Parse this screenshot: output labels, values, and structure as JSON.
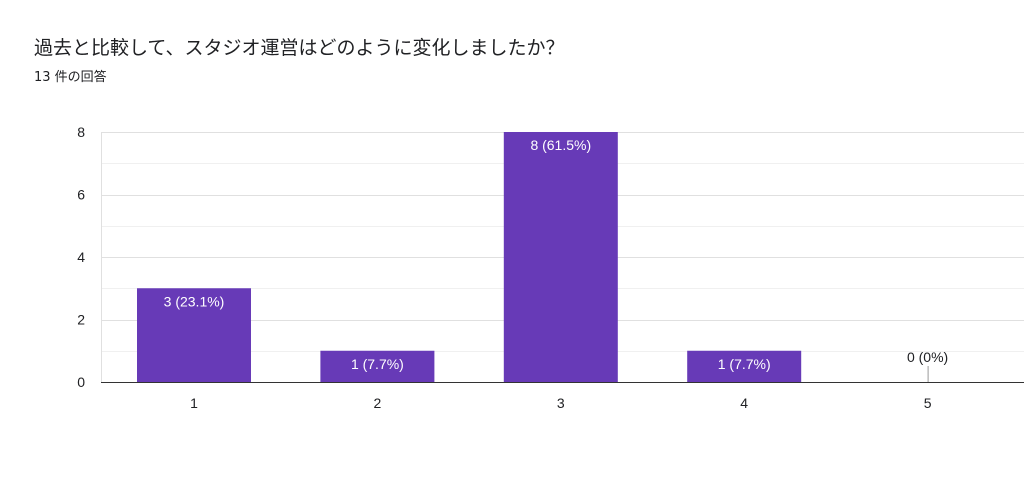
{
  "question": {
    "title": "過去と比較して、スタジオ運営はどのように変化しましたか？",
    "response_count": "13 件の回答"
  },
  "colors": {
    "bar": "#673ab7",
    "grid": "#e8e8e8",
    "axis": "#333333",
    "label_inside": "#ffffff",
    "label_outside": "#202124"
  },
  "chart_data": {
    "type": "bar",
    "title": "過去と比較して、スタジオ運営はどのように変化しましたか？",
    "xlabel": "",
    "ylabel": "",
    "categories": [
      "1",
      "2",
      "3",
      "4",
      "5"
    ],
    "values": [
      3,
      1,
      8,
      1,
      0
    ],
    "data_labels": [
      "3 (23.1%)",
      "1 (7.7%)",
      "8 (61.5%)",
      "1 (7.7%)",
      "0 (0%)"
    ],
    "ylim": [
      0,
      8
    ],
    "yticks": [
      0,
      2,
      4,
      6,
      8
    ],
    "grid": true,
    "legend": "none"
  }
}
